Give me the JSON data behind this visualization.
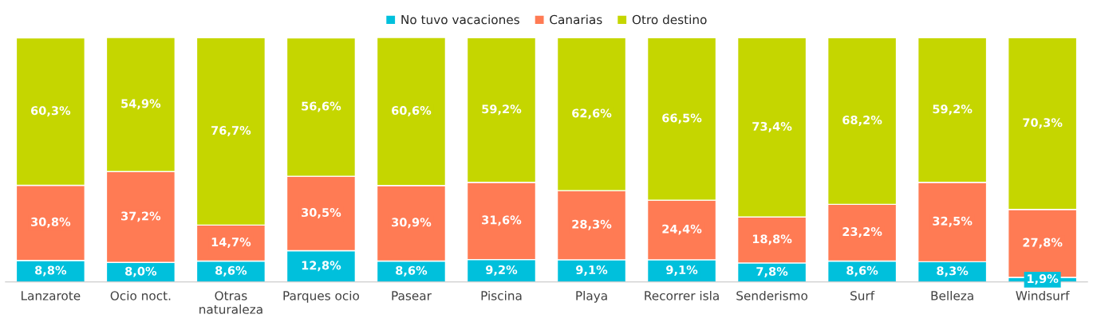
{
  "chart_data": {
    "type": "bar",
    "stacked": true,
    "legend": "top",
    "categories": [
      "Lanzarote",
      "Ocio noct.",
      "Otras naturaleza",
      "Parques ocio",
      "Pasear",
      "Piscina",
      "Playa",
      "Recorrer isla",
      "Senderismo",
      "Surf",
      "Belleza",
      "Windsurf"
    ],
    "series": [
      {
        "name": "No tuvo vacaciones",
        "color": "#00c0dc",
        "values": [
          8.8,
          8.0,
          8.6,
          12.8,
          8.6,
          9.2,
          9.1,
          9.1,
          7.8,
          8.6,
          8.3,
          1.9
        ],
        "value_labels": [
          "8,8%",
          "8,0%",
          "8,6%",
          "12,8%",
          "8,6%",
          "9,2%",
          "9,1%",
          "9,1%",
          "7,8%",
          "8,6%",
          "8,3%",
          "1,9%"
        ]
      },
      {
        "name": "Canarias",
        "color": "#ff7b54",
        "values": [
          30.8,
          37.2,
          14.7,
          30.5,
          30.9,
          31.6,
          28.3,
          24.4,
          18.8,
          23.2,
          32.5,
          27.8
        ],
        "value_labels": [
          "30,8%",
          "37,2%",
          "14,7%",
          "30,5%",
          "30,9%",
          "31,6%",
          "28,3%",
          "24,4%",
          "18,8%",
          "23,2%",
          "32,5%",
          "27,8%"
        ]
      },
      {
        "name": "Otro destino",
        "color": "#c5d600",
        "values": [
          60.3,
          54.9,
          76.7,
          56.6,
          60.6,
          59.2,
          62.6,
          66.5,
          73.4,
          68.2,
          59.2,
          70.3
        ],
        "value_labels": [
          "60,3%",
          "54,9%",
          "76,7%",
          "56,6%",
          "60,6%",
          "59,2%",
          "62,6%",
          "66,5%",
          "73,4%",
          "68,2%",
          "59,2%",
          "70,3%"
        ]
      }
    ]
  }
}
